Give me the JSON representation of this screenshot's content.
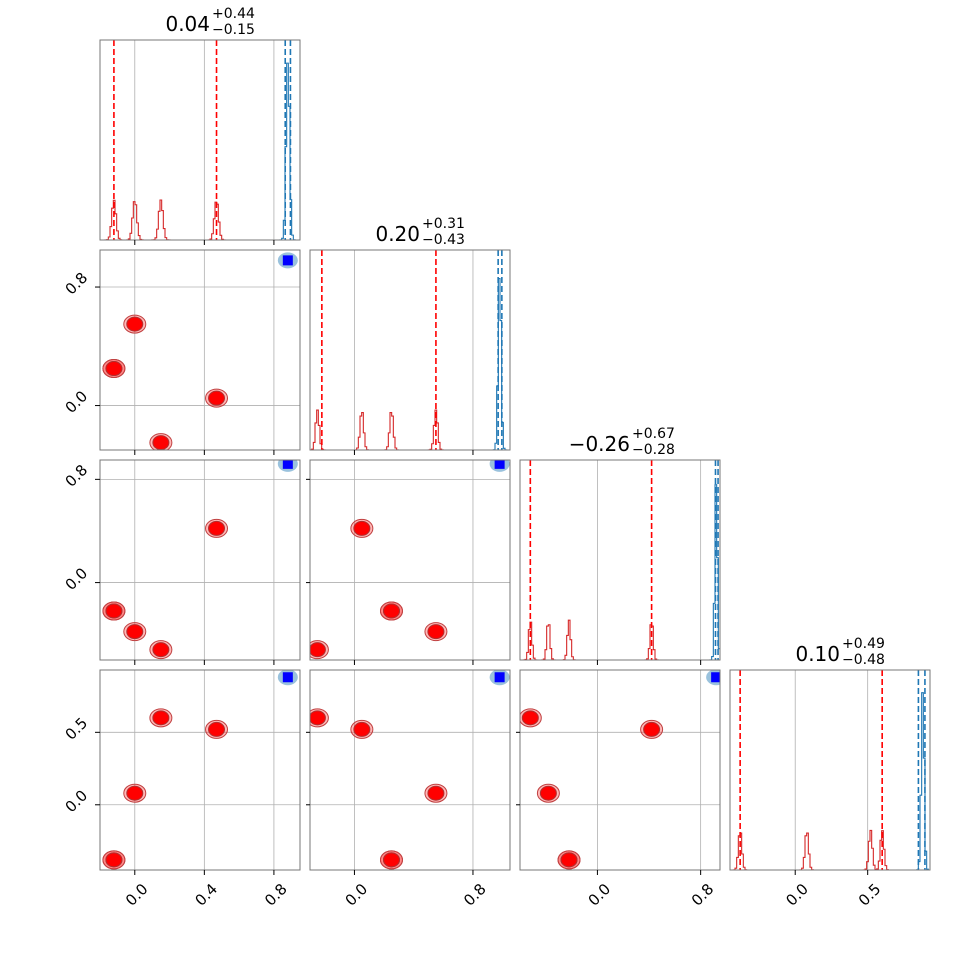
{
  "chart_data": {
    "type": "corner",
    "parameters": [
      {
        "title_main": "0.04",
        "title_plus": "+0.44",
        "title_minus": "−0.15",
        "lim": [
          -0.2,
          0.95
        ]
      },
      {
        "title_main": "0.20",
        "title_plus": "+0.31",
        "title_minus": "−0.43",
        "lim": [
          -0.3,
          1.05
        ]
      },
      {
        "title_main": "−0.26",
        "title_plus": "+0.67",
        "title_minus": "−0.28",
        "lim": [
          -0.6,
          0.95
        ]
      },
      {
        "title_main": "0.10",
        "title_plus": "+0.49",
        "title_minus": "−0.48",
        "lim": [
          -0.45,
          0.93
        ]
      }
    ],
    "ticks": [
      {
        "values": [
          0.0,
          0.4,
          0.8
        ],
        "labels": [
          "0.0",
          "0.4",
          "0.8"
        ]
      },
      {
        "values": [
          0.0,
          0.8
        ],
        "labels": [
          "0.0",
          "0.8"
        ]
      },
      {
        "values": [
          0.0,
          0.8
        ],
        "labels": [
          "0.0",
          "0.8"
        ]
      },
      {
        "values": [
          0.0,
          0.5
        ],
        "labels": [
          "0.0",
          "0.5"
        ]
      }
    ],
    "red_modes": [
      [
        -0.12,
        -0.12,
        0.0,
        0.15,
        0.47
      ],
      [
        0.25,
        0.25,
        0.55,
        -0.25,
        0.05
      ],
      [
        -0.22,
        -0.22,
        -0.38,
        -0.52,
        0.42
      ],
      [
        -0.38,
        -0.38,
        0.08,
        0.6,
        0.52
      ]
    ],
    "blue_mode": [
      0.88,
      0.98,
      0.92,
      0.88
    ],
    "quantile_lines_red": [
      [
        -0.12,
        0.47
      ],
      [
        -0.22,
        0.55
      ],
      [
        -0.52,
        0.42
      ],
      [
        -0.38,
        0.6
      ]
    ],
    "quantile_lines_blue": [
      [
        0.865,
        0.895
      ],
      [
        0.97,
        0.995
      ],
      [
        0.915,
        0.935
      ],
      [
        0.85,
        0.895
      ]
    ],
    "colors": {
      "red": "#d62728",
      "red_fill": "#ff0000",
      "blue": "#1f77b4",
      "blue_fill": "#0000ff",
      "grid": "#b0b0b0",
      "frame": "#777777"
    }
  }
}
